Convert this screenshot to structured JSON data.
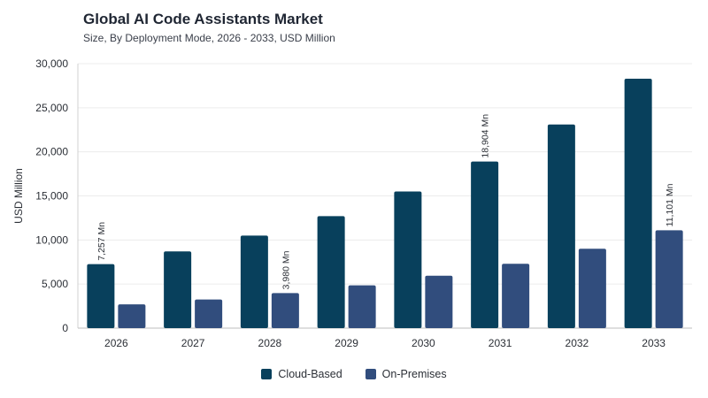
{
  "chart_data": {
    "type": "bar",
    "title": "Global AI Code Assistants Market",
    "subtitle": "Size, By Deployment Mode, 2026 - 2033, USD Million",
    "xlabel": "",
    "ylabel": "USD Million",
    "ylim": [
      0,
      30000
    ],
    "yticks": [
      "0",
      "5,000",
      "10,000",
      "15,000",
      "20,000",
      "25,000",
      "30,000"
    ],
    "grid": true,
    "legend_position": "bottom",
    "categories": [
      "2026",
      "2027",
      "2028",
      "2029",
      "2030",
      "2031",
      "2032",
      "2033"
    ],
    "series": [
      {
        "name": "Cloud-Based",
        "color": "#08405c",
        "values": [
          7257,
          8700,
          10500,
          12700,
          15500,
          18904,
          23100,
          28300
        ],
        "labels": [
          "7,257 Mn",
          "",
          "",
          "",
          "",
          "18,904 Mn",
          "",
          ""
        ]
      },
      {
        "name": "On-Premises",
        "color": "#314d7d",
        "values": [
          2700,
          3250,
          3980,
          4850,
          5950,
          7300,
          9000,
          11101
        ],
        "labels": [
          "",
          "",
          "3,980 Mn",
          "",
          "",
          "",
          "",
          "11,101 Mn"
        ]
      }
    ]
  }
}
